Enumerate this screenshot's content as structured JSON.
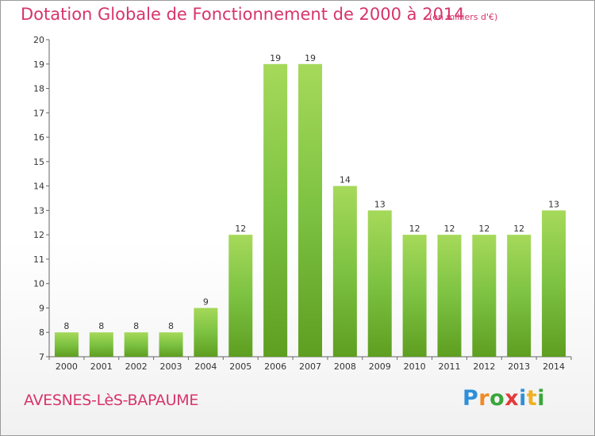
{
  "header": {
    "title": "Dotation Globale de Fonctionnement de 2000 à 2014",
    "unit": "(en milliers d'€)"
  },
  "footer": {
    "place": "AVESNES-LèS-BAPAUME",
    "logo_letters": [
      "P",
      "r",
      "o",
      "x",
      "i",
      "t",
      "i"
    ],
    "logo_colors": [
      "#2f8fd8",
      "#f08a24",
      "#3aa63a",
      "#e23b3b",
      "#2f8fd8",
      "#f0b020",
      "#3aa63a"
    ]
  },
  "chart_data": {
    "type": "bar",
    "categories": [
      "2000",
      "2001",
      "2002",
      "2003",
      "2004",
      "2005",
      "2006",
      "2007",
      "2008",
      "2009",
      "2010",
      "2011",
      "2012",
      "2013",
      "2014"
    ],
    "values": [
      8,
      8,
      8,
      8,
      9,
      12,
      19,
      19,
      14,
      13,
      12,
      12,
      12,
      12,
      13
    ],
    "data_labels": [
      "8",
      "8",
      "8",
      "8",
      "9",
      "12",
      "19",
      "19",
      "14",
      "13",
      "12",
      "12",
      "12",
      "12",
      "13"
    ],
    "title": "Dotation Globale de Fonctionnement de 2000 à 2014",
    "ylim": [
      7,
      20
    ],
    "yticks": [
      "7",
      "8",
      "9",
      "10",
      "11",
      "12",
      "13",
      "14",
      "15",
      "16",
      "17",
      "18",
      "19",
      "20"
    ],
    "grid": false,
    "bar_color": "#7dc242",
    "bar_color_light": "#a6d95a",
    "bar_color_dark": "#5e9e20"
  }
}
